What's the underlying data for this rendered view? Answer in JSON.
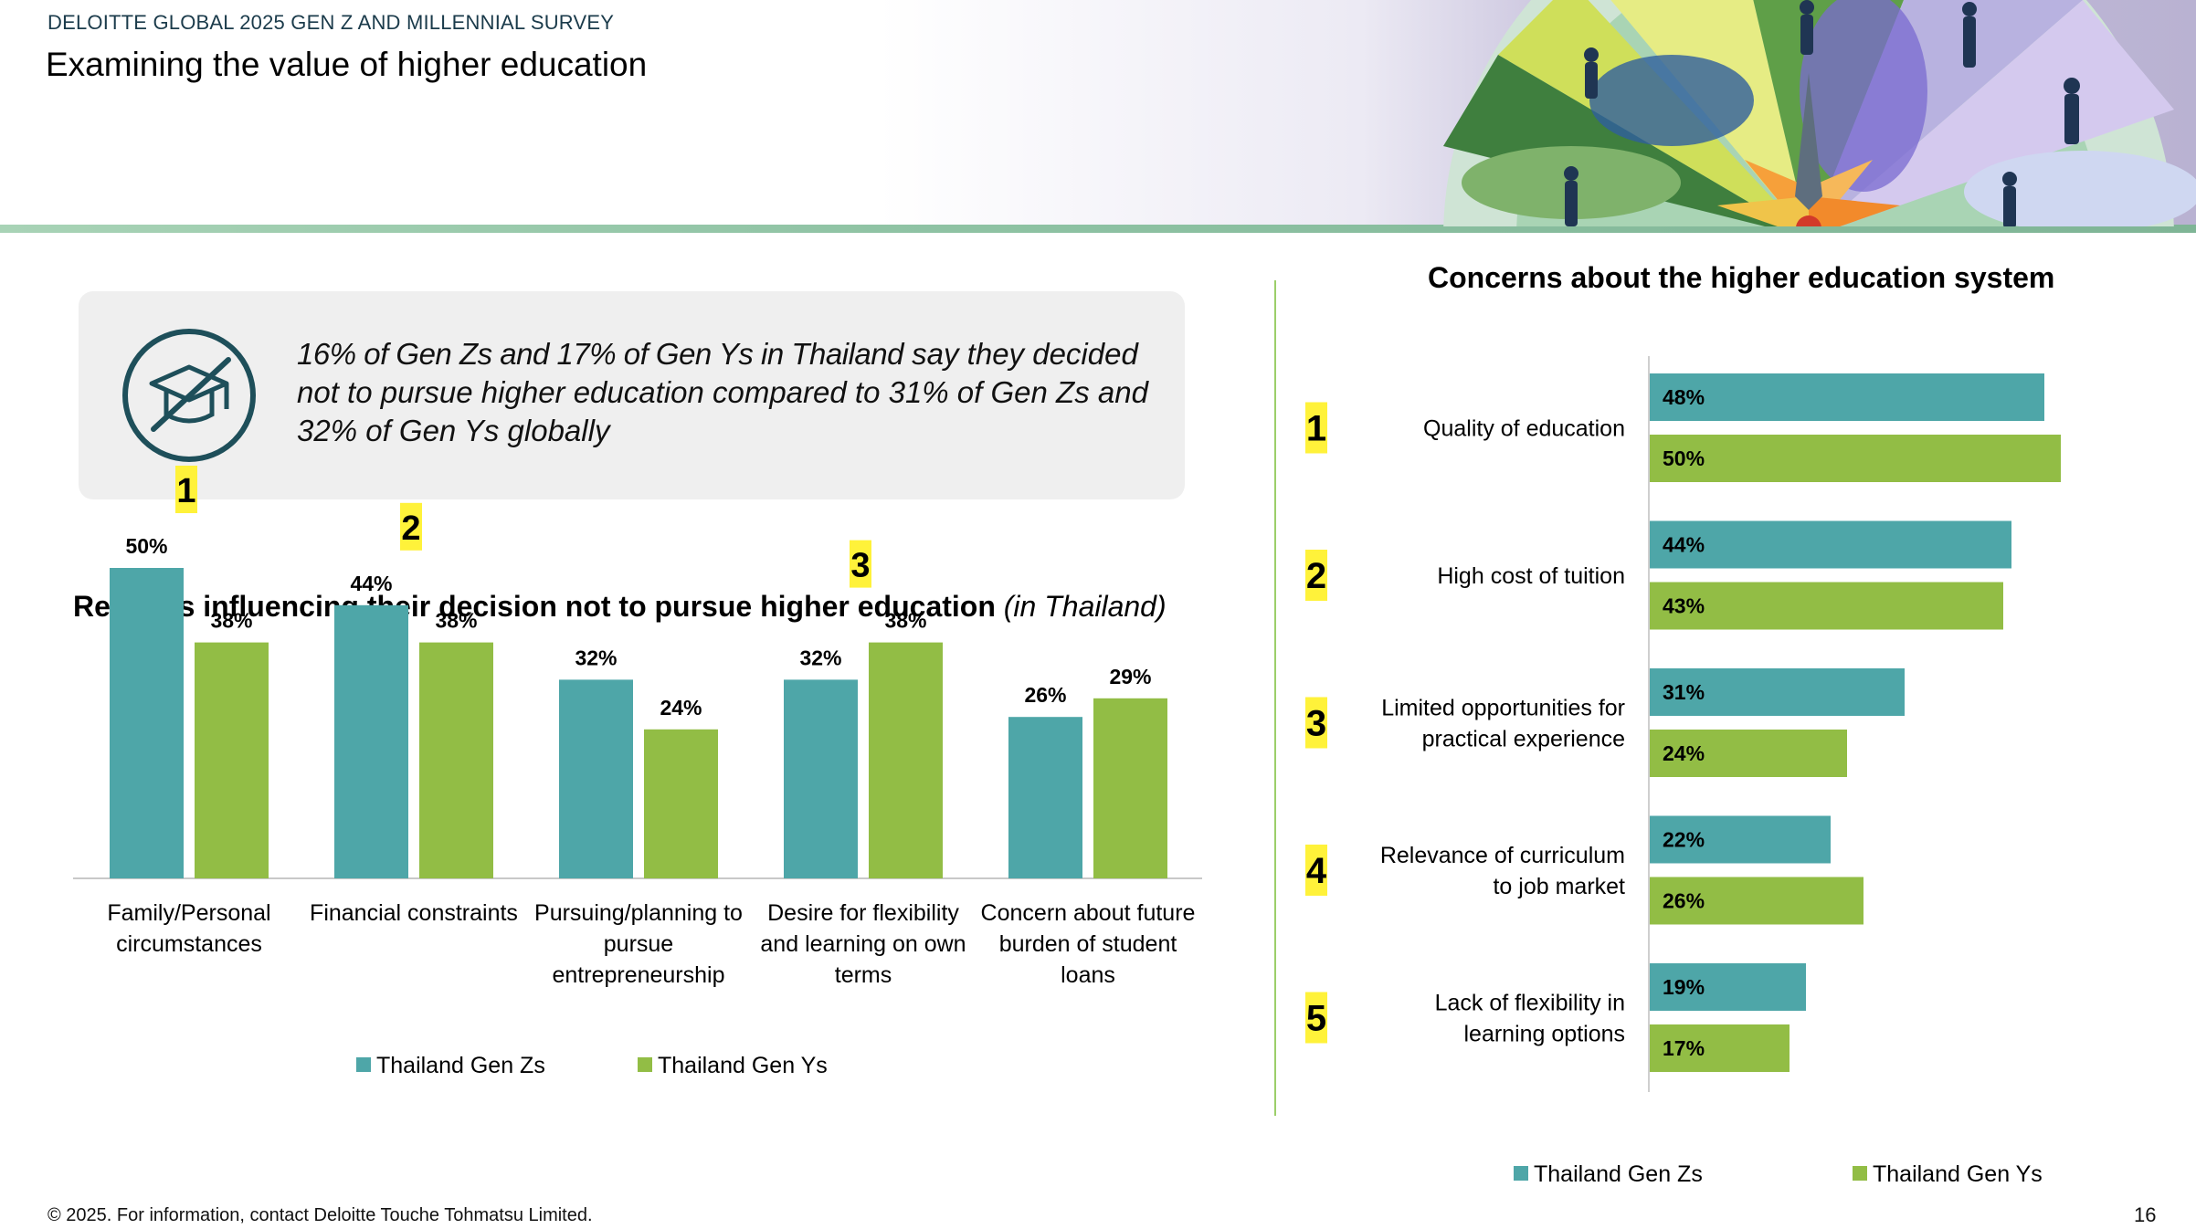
{
  "header": {
    "survey_label": "DELOITTE GLOBAL 2025 GEN Z AND MILLENNIAL SURVEY",
    "page_title": "Examining the value of higher education"
  },
  "callout": {
    "text_part1": "16% of Gen Zs and 17% of Gen Ys in Thailand",
    "text_part2": " say they decided not to pursue higher education compared to 31% of Gen Zs and 32% of Gen Ys globally",
    "icon": "graduation-cap-crossed-icon"
  },
  "left_chart_title": {
    "main": "Reasons influencing their decision not to pursue higher education",
    "suffix": "(in Thailand)"
  },
  "right_chart_title": "Concerns about the higher education system",
  "footer": {
    "copyright": "© 2025. For information, contact Deloitte Touche Tohmatsu Limited.",
    "page_number": "16"
  },
  "colors": {
    "gen_z": "#4ea6a8",
    "gen_y": "#92bd45",
    "rank_highlight": "#fff23a",
    "divider": "#9ccf6a",
    "header_line": "#8fc3a4"
  },
  "chart_data": [
    {
      "type": "bar",
      "orientation": "vertical",
      "title": "Reasons influencing their decision not to pursue higher education (in Thailand)",
      "categories": [
        [
          "Family/Personal",
          "circumstances"
        ],
        [
          "Financial constraints"
        ],
        [
          "Pursuing/planning to",
          "pursue",
          "entrepreneurship"
        ],
        [
          "Desire for flexibility",
          "and learning on own",
          "terms"
        ],
        [
          "Concern about future",
          "burden of student",
          "loans"
        ]
      ],
      "ranks": [
        "1",
        "2",
        "",
        "3",
        ""
      ],
      "series": [
        {
          "name": "Thailand Gen Zs",
          "values": [
            50,
            44,
            32,
            32,
            26
          ],
          "labels": [
            "50%",
            "44%",
            "32%",
            "32%",
            "26%"
          ]
        },
        {
          "name": "Thailand Gen Ys",
          "values": [
            38,
            38,
            24,
            38,
            29
          ],
          "labels": [
            "38%",
            "38%",
            "24%",
            "38%",
            "29%"
          ]
        }
      ],
      "ylim": [
        0,
        55
      ],
      "legend": "bottom"
    },
    {
      "type": "bar",
      "orientation": "horizontal",
      "title": "Concerns about the higher education system",
      "categories": [
        [
          "Quality of education"
        ],
        [
          "High cost of tuition"
        ],
        [
          "Limited opportunities for",
          "practical experience"
        ],
        [
          "Relevance of curriculum",
          "to job market"
        ],
        [
          "Lack of flexibility in",
          "learning options"
        ]
      ],
      "ranks": [
        "1",
        "2",
        "3",
        "4",
        "5"
      ],
      "series": [
        {
          "name": "Thailand Gen Zs",
          "values": [
            48,
            44,
            31,
            22,
            19
          ],
          "labels": [
            "48%",
            "44%",
            "31%",
            "22%",
            "19%"
          ]
        },
        {
          "name": "Thailand Gen Ys",
          "values": [
            50,
            43,
            24,
            26,
            17
          ],
          "labels": [
            "50%",
            "43%",
            "24%",
            "26%",
            "17%"
          ]
        }
      ],
      "xlim": [
        0,
        50
      ],
      "legend": "bottom"
    }
  ]
}
